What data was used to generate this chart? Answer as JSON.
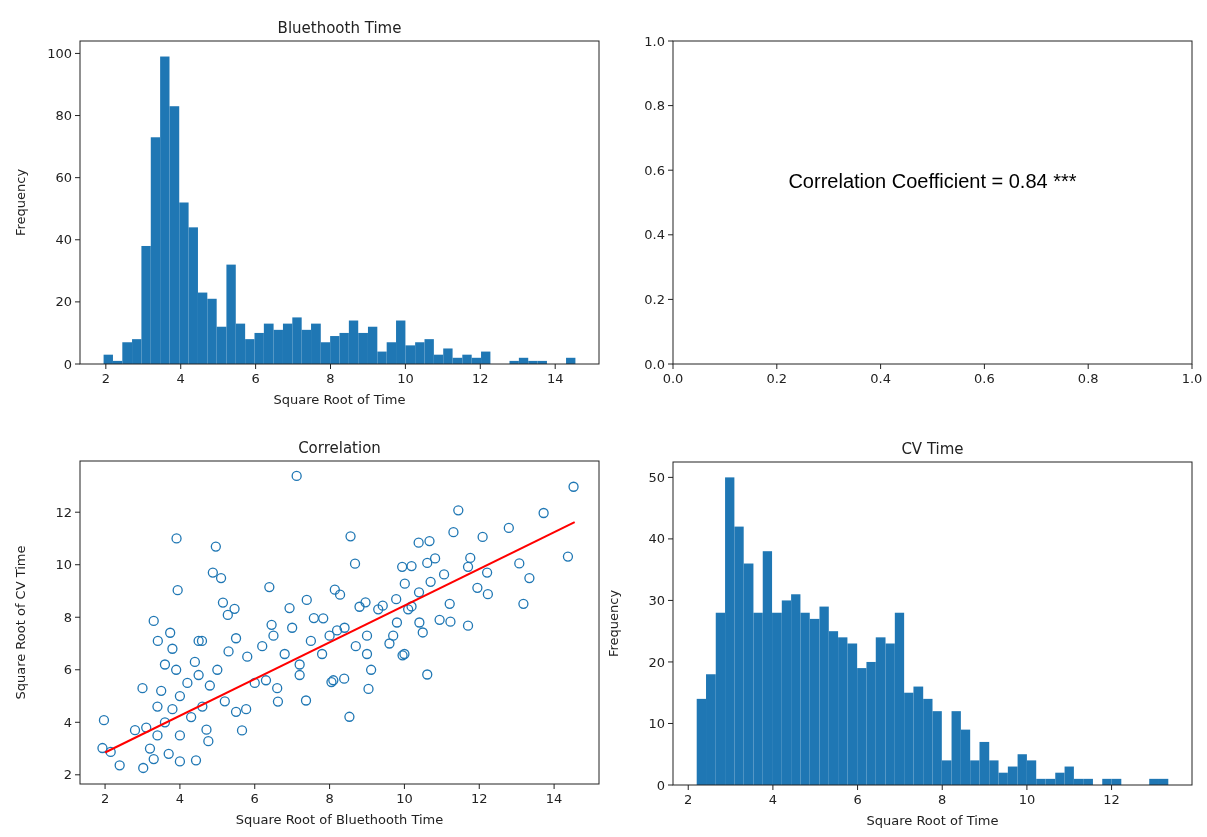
{
  "chart_data": [
    {
      "type": "histogram",
      "title": "Bluethooth Time",
      "xlabel": "Square Root of Time",
      "ylabel": "Frequency",
      "color": "#1f77b4",
      "bins": [
        1.94,
        2.19,
        2.44,
        2.7,
        2.95,
        3.2,
        3.45,
        3.7,
        3.96,
        4.21,
        4.46,
        4.71,
        4.96,
        5.22,
        5.47,
        5.72,
        5.97,
        6.22,
        6.48,
        6.73,
        6.98,
        7.23,
        7.48,
        7.74,
        7.99,
        8.24,
        8.49,
        8.74,
        9.0,
        9.25,
        9.5,
        9.75,
        10.0,
        10.26,
        10.51,
        10.76,
        11.01,
        11.26,
        11.52,
        11.77,
        12.02,
        12.27,
        12.52,
        12.78,
        13.03,
        13.28,
        13.53,
        13.78,
        14.04,
        14.29,
        14.54
      ],
      "values": [
        3,
        1,
        7,
        8,
        38,
        73,
        99,
        83,
        52,
        44,
        23,
        21,
        12,
        32,
        13,
        8,
        10,
        13,
        11,
        13,
        15,
        11,
        13,
        7,
        9,
        10,
        14,
        10,
        12,
        4,
        7,
        14,
        6,
        7,
        8,
        3,
        5,
        2,
        3,
        2,
        4,
        0,
        0,
        1,
        2,
        1,
        1,
        0,
        0,
        2
      ],
      "xlim": [
        1.31,
        15.17
      ],
      "ylim": [
        0,
        104
      ],
      "xticks": [
        2,
        4,
        6,
        8,
        10,
        12,
        14
      ],
      "yticks": [
        0,
        20,
        40,
        60,
        80,
        100
      ]
    },
    {
      "type": "scatter",
      "annotations": [
        "Correlation Coefficient = 0.84 ***"
      ],
      "xlim": [
        0,
        1
      ],
      "ylim": [
        0,
        1
      ],
      "xticks": [
        {
          "value": 0,
          "label": "0.0"
        },
        {
          "value": 0.2,
          "label": "0.2"
        },
        {
          "value": 0.4,
          "label": "0.4"
        },
        {
          "value": 0.6,
          "label": "0.6"
        },
        {
          "value": 0.8,
          "label": "0.8"
        },
        {
          "value": 1,
          "label": "1.0"
        }
      ],
      "yticks": [
        {
          "value": 0,
          "label": "0.0"
        },
        {
          "value": 0.2,
          "label": "0.2"
        },
        {
          "value": 0.4,
          "label": "0.4"
        },
        {
          "value": 0.6,
          "label": "0.6"
        },
        {
          "value": 0.8,
          "label": "0.8"
        },
        {
          "value": 1,
          "label": "1.0"
        }
      ]
    },
    {
      "type": "scatter",
      "title": "Correlation",
      "xlabel": "Square Root of Bluethooth Time",
      "ylabel": "Square Root of CV Time",
      "xlim": [
        1.33,
        15.2
      ],
      "ylim": [
        1.65,
        13.95
      ],
      "xticks": [
        2,
        4,
        6,
        8,
        10,
        12,
        14
      ],
      "yticks": [
        2,
        4,
        6,
        8,
        10,
        12
      ],
      "series": [
        {
          "type": "scatter",
          "marker": "circle",
          "color": "#1f77b4",
          "x": [
            7.12,
            14.52,
            11.44,
            13.72,
            12.79,
            11.31,
            12.09,
            3.91,
            8.56,
            4.96,
            10.38,
            10.67,
            10.82,
            10.61,
            11.76,
            11.7,
            14.37,
            13.07,
            8.68,
            9.94,
            10.19,
            12.21,
            13.34,
            4.88,
            5.1,
            3.94,
            6.39,
            10.01,
            11.06,
            10.7,
            11.95,
            12.23,
            13.18,
            11.21,
            8.14,
            8.28,
            10.39,
            7.39,
            5.15,
            5.46,
            5.28,
            6.93,
            8.96,
            9.42,
            9.78,
            10.19,
            3.3,
            3.74,
            3.41,
            4.59,
            7.58,
            7.83,
            6.45,
            11.23,
            11.7,
            10.94,
            10.49,
            9.95,
            9.11,
            9.04,
            10.61,
            8.53,
            7.37,
            6.62,
            8.05,
            8.39,
            5.77,
            5.66,
            1.97,
            1.93,
            2.15,
            2.39,
            3.02,
            4.43,
            4.0,
            4.76,
            4.71,
            3.2,
            3.4,
            3.6,
            3.8,
            4.0,
            4.2,
            3.5,
            3.3,
            3.7,
            4.0,
            4.3,
            4.5,
            3.9,
            3.4,
            3.1,
            2.8,
            3.0,
            4.6,
            4.8,
            5.0,
            5.3,
            5.5,
            5.8,
            6.0,
            6.2,
            6.5,
            6.8,
            7.0,
            7.2,
            7.5,
            7.8,
            8.0,
            8.4,
            8.7,
            9.0,
            9.3,
            9.6,
            9.8,
            10.1,
            10.4,
            5.2,
            5.5,
            6.3,
            7.2,
            8.1,
            6.6,
            4.4,
            3.6,
            3.8,
            4.5,
            9.0,
            9.7,
            10.0,
            8.8,
            8.2
          ],
          "values": [
            13.38,
            12.97,
            12.07,
            11.97,
            11.4,
            11.24,
            11.06,
            11.0,
            11.08,
            10.69,
            10.84,
            10.9,
            10.24,
            10.07,
            10.26,
            9.92,
            10.31,
            10.05,
            10.04,
            9.92,
            9.95,
            9.7,
            9.49,
            9.7,
            9.49,
            9.03,
            9.15,
            9.28,
            9.63,
            9.35,
            9.12,
            8.88,
            8.51,
            8.51,
            9.05,
            8.86,
            8.95,
            8.66,
            8.56,
            8.32,
            8.09,
            8.35,
            8.57,
            8.44,
            8.69,
            8.41,
            7.86,
            7.41,
            7.1,
            7.1,
            7.97,
            7.96,
            7.71,
            7.83,
            7.68,
            7.9,
            7.42,
            6.55,
            6.0,
            5.27,
            5.82,
            4.21,
            4.83,
            4.79,
            5.53,
            5.66,
            4.5,
            3.69,
            4.08,
            3.02,
            2.87,
            2.36,
            2.26,
            2.55,
            2.51,
            3.28,
            3.72,
            3.0,
            3.5,
            4.0,
            4.5,
            5.0,
            5.5,
            5.2,
            2.6,
            2.8,
            3.5,
            4.2,
            5.8,
            6.0,
            4.6,
            3.8,
            3.7,
            5.3,
            4.6,
            5.4,
            6.0,
            6.7,
            7.2,
            6.5,
            5.5,
            6.9,
            7.3,
            6.6,
            7.6,
            6.2,
            7.1,
            6.6,
            7.3,
            7.6,
            6.9,
            7.3,
            8.3,
            7.0,
            7.8,
            8.3,
            7.8,
            4.8,
            4.4,
            5.6,
            5.8,
            5.6,
            5.3,
            6.3,
            6.2,
            6.8,
            7.1,
            6.6,
            7.3,
            6.6,
            8.4,
            7.5
          ]
        },
        {
          "type": "line",
          "color": "#ff0000",
          "x": [
            2,
            14.55
          ],
          "values": [
            2.85,
            11.62
          ]
        }
      ]
    },
    {
      "type": "histogram",
      "title": "CV Time",
      "xlabel": "Square Root of Time",
      "ylabel": "Frequency",
      "color": "#1f77b4",
      "bins": [
        2.2,
        2.42,
        2.65,
        2.87,
        3.09,
        3.31,
        3.54,
        3.76,
        3.98,
        4.21,
        4.43,
        4.65,
        4.87,
        5.1,
        5.32,
        5.54,
        5.76,
        5.99,
        6.21,
        6.43,
        6.66,
        6.88,
        7.1,
        7.32,
        7.55,
        7.77,
        7.99,
        8.22,
        8.44,
        8.66,
        8.88,
        9.11,
        9.33,
        9.55,
        9.78,
        10.0,
        10.22,
        10.44,
        10.67,
        10.89,
        11.11,
        11.33,
        11.56,
        11.78,
        12.0,
        12.23,
        12.45,
        12.67,
        12.89,
        13.12,
        13.34
      ],
      "values": [
        14,
        18,
        28,
        50,
        42,
        36,
        28,
        38,
        28,
        30,
        31,
        28,
        27,
        29,
        25,
        24,
        23,
        19,
        20,
        24,
        23,
        28,
        15,
        16,
        14,
        12,
        4,
        12,
        9,
        4,
        7,
        4,
        2,
        3,
        5,
        4,
        1,
        1,
        2,
        3,
        1,
        1,
        0,
        1,
        1,
        0,
        0,
        0,
        1,
        1
      ],
      "xlim": [
        1.64,
        13.9
      ],
      "ylim": [
        0,
        52.5
      ],
      "xticks": [
        2,
        4,
        6,
        8,
        10,
        12
      ],
      "yticks": [
        0,
        10,
        20,
        30,
        40,
        50
      ]
    }
  ]
}
